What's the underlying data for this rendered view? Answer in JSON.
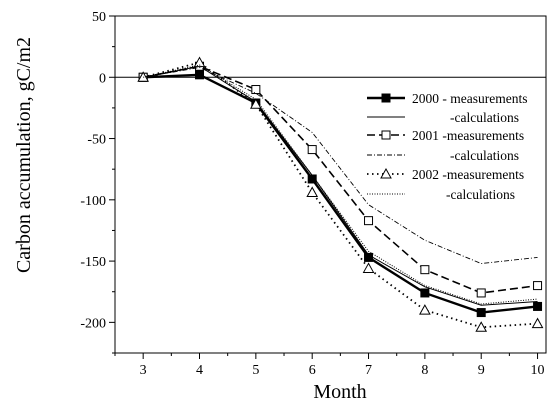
{
  "chart_data": {
    "type": "line",
    "xlabel": "Month",
    "ylabel": "Carbon accumulation, gC/m2",
    "xlim": [
      2.5,
      10.15
    ],
    "ylim": [
      -225,
      50
    ],
    "xticks": [
      3,
      4,
      5,
      6,
      7,
      8,
      9,
      10
    ],
    "yticks": [
      50,
      0,
      -50,
      -100,
      -150,
      -200
    ],
    "x_tick_labels": [
      "3",
      "4",
      "5",
      "6",
      "7",
      "8",
      "9",
      "10"
    ],
    "y_tick_labels": [
      "50",
      "0",
      "-50",
      "-100",
      "-150",
      "-200"
    ],
    "zero_line": true,
    "grid": false,
    "legend_position": "right",
    "series": [
      {
        "name": "2000 - measurements",
        "line": "solid-thick",
        "marker": "filled-square",
        "x": [
          3,
          4,
          5,
          6,
          7,
          8,
          9,
          10
        ],
        "y": [
          0,
          2,
          -21,
          -83,
          -147,
          -176,
          -192,
          -187
        ]
      },
      {
        "name": "-calculations",
        "line": "solid-thin",
        "marker": "none",
        "x": [
          3,
          4,
          5,
          6,
          7,
          8,
          9,
          10
        ],
        "y": [
          0,
          9,
          -20,
          -80,
          -145,
          -171,
          -186,
          -183
        ]
      },
      {
        "name": "2001 -measurements",
        "line": "dashed",
        "marker": "open-square",
        "x": [
          3,
          4,
          5,
          6,
          7,
          8,
          9,
          10
        ],
        "y": [
          0,
          9,
          -10,
          -59,
          -117,
          -157,
          -176,
          -170
        ]
      },
      {
        "name": "-calculations",
        "line": "dash-dot",
        "marker": "none",
        "x": [
          3,
          4,
          5,
          6,
          7,
          8,
          9,
          10
        ],
        "y": [
          0,
          8,
          -13,
          -45,
          -104,
          -133,
          -152,
          -147
        ]
      },
      {
        "name": "2002 -measurements",
        "line": "dotted",
        "marker": "open-triangle",
        "x": [
          3,
          4,
          5,
          6,
          7,
          8,
          9,
          10
        ],
        "y": [
          0,
          12,
          -22,
          -94,
          -156,
          -190,
          -204,
          -201
        ]
      },
      {
        "name": "-calculations",
        "line": "dotted-fine",
        "marker": "none",
        "x": [
          3,
          4,
          5,
          6,
          7,
          8,
          9,
          10
        ],
        "y": [
          0,
          10,
          -18,
          -80,
          -142,
          -170,
          -185,
          -181
        ]
      }
    ]
  }
}
